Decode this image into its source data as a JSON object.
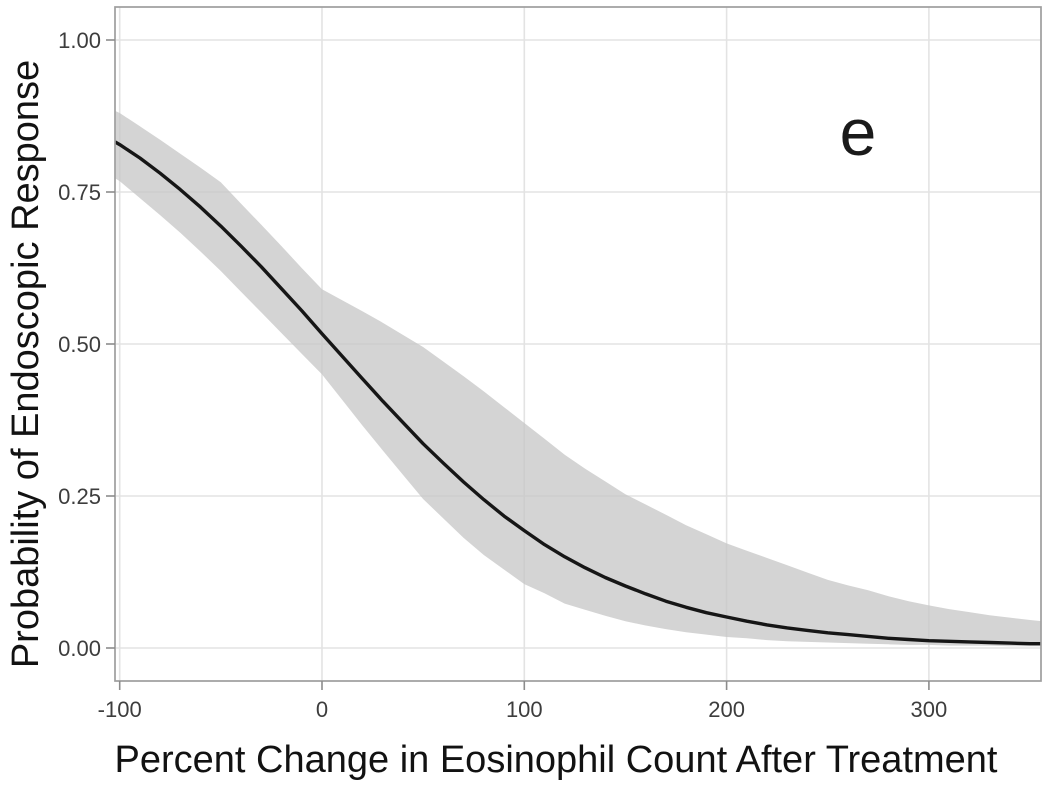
{
  "figure": {
    "panel_label": "e",
    "x_axis_title": "Percent Change in Eosinophil Count After Treatment",
    "y_axis_title": "Probability of Endoscopic Response"
  },
  "colors": {
    "background": "#ffffff",
    "band": "#d4d4d4",
    "curve": "#161616",
    "gridline": "#c8c8c8",
    "panel_border": "#9e9e9e",
    "tick_mark": "#8c8c8c",
    "tick_label": "#3d3d3d",
    "axis_title": "#121212"
  },
  "chart_data": {
    "type": "line",
    "title": "",
    "xlabel": "Percent Change in Eosinophil Count After Treatment",
    "ylabel": "Probability of Endoscopic Response",
    "annotation": "e",
    "grid": true,
    "legend": "none",
    "xlim": [
      -102.3,
      355.4
    ],
    "ylim": [
      -0.0543,
      1.0543
    ],
    "x_ticks": [
      {
        "value": -100,
        "label": "-100"
      },
      {
        "value": 0,
        "label": "0"
      },
      {
        "value": 100,
        "label": "100"
      },
      {
        "value": 200,
        "label": "200"
      },
      {
        "value": 300,
        "label": "300"
      }
    ],
    "y_ticks": [
      {
        "value": 1.0,
        "label": "1.00"
      },
      {
        "value": 0.75,
        "label": "0.75"
      },
      {
        "value": 0.5,
        "label": "0.50"
      },
      {
        "value": 0.25,
        "label": "0.25"
      },
      {
        "value": 0.0,
        "label": "0.00"
      }
    ],
    "x": [
      -102,
      -100,
      -90,
      -80,
      -70,
      -60,
      -50,
      -40,
      -30,
      -20,
      -10,
      0,
      10,
      20,
      30,
      40,
      50,
      60,
      70,
      80,
      90,
      100,
      110,
      120,
      130,
      140,
      150,
      160,
      170,
      180,
      190,
      200,
      210,
      220,
      230,
      240,
      250,
      260,
      270,
      280,
      290,
      300,
      310,
      320,
      330,
      340,
      350,
      356
    ],
    "series": [
      {
        "name": "predicted-probability",
        "style": "line",
        "values": [
          0.832,
          0.828,
          0.806,
          0.781,
          0.754,
          0.725,
          0.694,
          0.661,
          0.627,
          0.591,
          0.555,
          0.517,
          0.48,
          0.443,
          0.406,
          0.371,
          0.336,
          0.304,
          0.273,
          0.244,
          0.217,
          0.193,
          0.17,
          0.15,
          0.132,
          0.116,
          0.102,
          0.089,
          0.077,
          0.067,
          0.058,
          0.051,
          0.044,
          0.038,
          0.033,
          0.029,
          0.025,
          0.022,
          0.019,
          0.016,
          0.014,
          0.012,
          0.011,
          0.01,
          0.009,
          0.008,
          0.007,
          0.007
        ]
      },
      {
        "name": "confidence-band-lower",
        "style": "band-edge",
        "values": [
          0.772,
          0.768,
          0.74,
          0.712,
          0.683,
          0.652,
          0.62,
          0.586,
          0.552,
          0.518,
          0.484,
          0.45,
          0.408,
          0.366,
          0.325,
          0.285,
          0.245,
          0.213,
          0.181,
          0.153,
          0.129,
          0.105,
          0.09,
          0.073,
          0.063,
          0.053,
          0.044,
          0.037,
          0.031,
          0.026,
          0.022,
          0.018,
          0.016,
          0.013,
          0.011,
          0.01,
          0.009,
          0.008,
          0.007,
          0.006,
          0.005,
          0.005,
          0.004,
          0.004,
          0.004,
          0.003,
          0.003,
          0.003
        ]
      },
      {
        "name": "confidence-band-upper",
        "style": "band-edge",
        "values": [
          0.883,
          0.88,
          0.858,
          0.836,
          0.813,
          0.79,
          0.766,
          0.731,
          0.696,
          0.661,
          0.625,
          0.59,
          0.572,
          0.554,
          0.535,
          0.515,
          0.495,
          0.471,
          0.447,
          0.422,
          0.396,
          0.37,
          0.344,
          0.318,
          0.295,
          0.274,
          0.253,
          0.236,
          0.219,
          0.202,
          0.187,
          0.172,
          0.16,
          0.148,
          0.136,
          0.124,
          0.112,
          0.103,
          0.095,
          0.085,
          0.077,
          0.07,
          0.064,
          0.059,
          0.054,
          0.05,
          0.046,
          0.044
        ]
      }
    ]
  }
}
